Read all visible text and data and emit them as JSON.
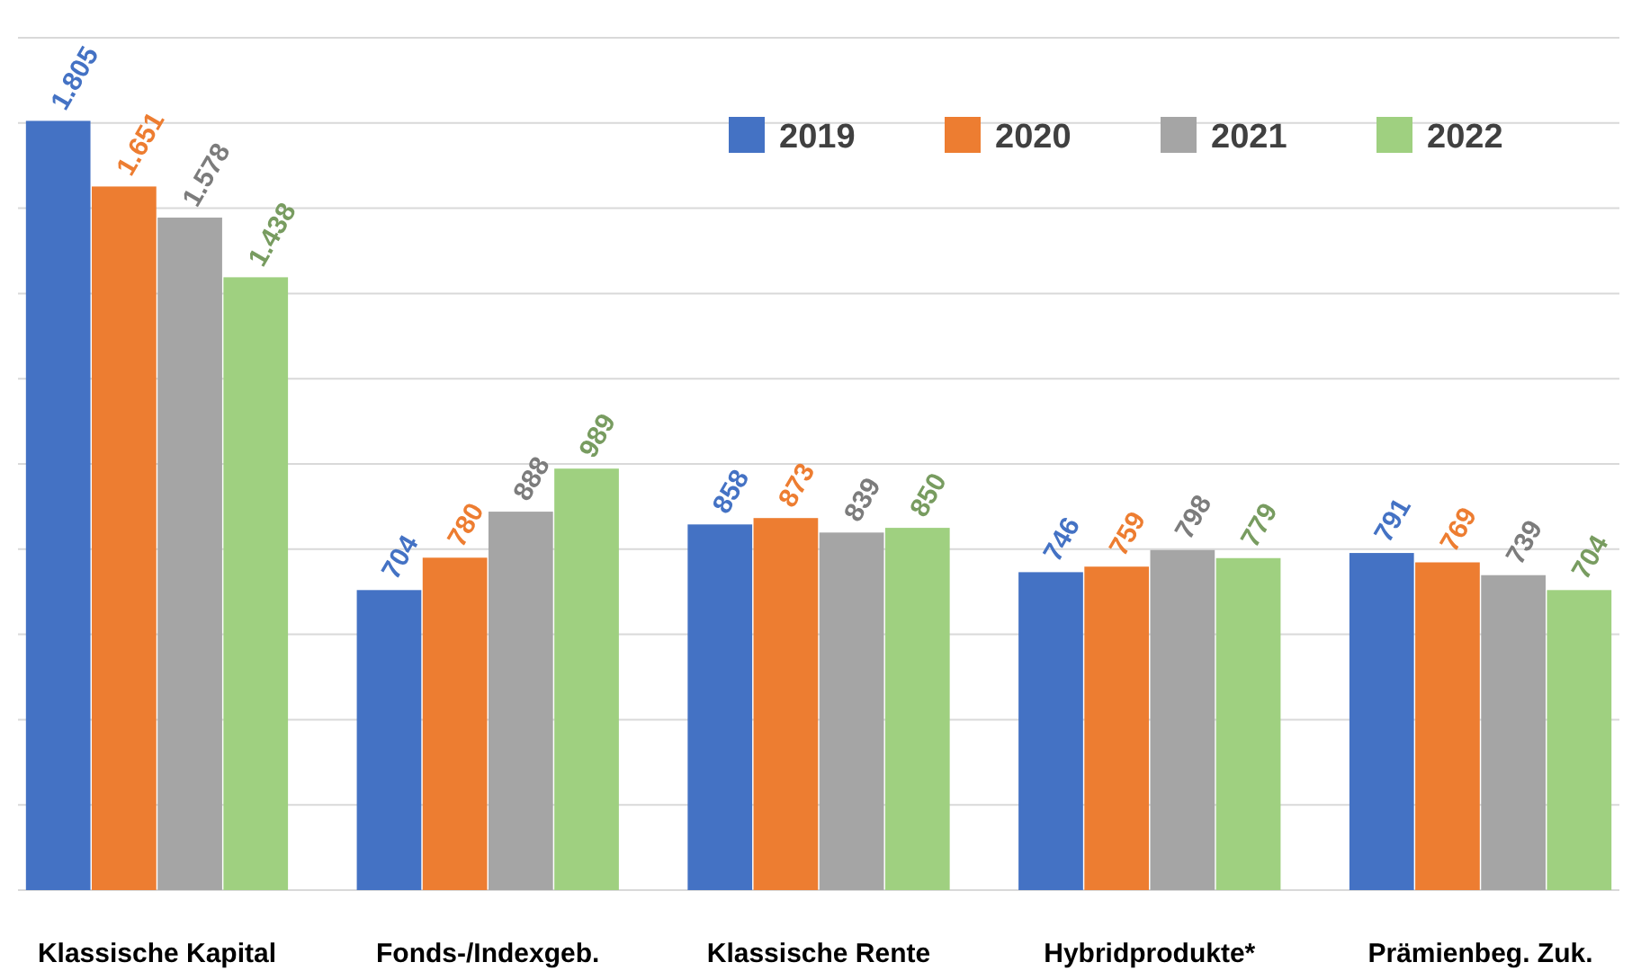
{
  "chart_data": {
    "type": "bar",
    "categories": [
      "Klassische Kapital",
      "Fonds-/Indexgeb.",
      "Klassische Rente",
      "Hybridprodukte*",
      "Prämienbeg. Zuk."
    ],
    "series": [
      {
        "name": "2019",
        "color": "#4472c4",
        "values": [
          1805,
          704,
          858,
          746,
          791
        ],
        "value_labels": [
          "1.805",
          "704",
          "858",
          "746",
          "791"
        ]
      },
      {
        "name": "2020",
        "color": "#ed7d31",
        "values": [
          1651,
          780,
          873,
          759,
          769
        ],
        "value_labels": [
          "1.651",
          "780",
          "873",
          "759",
          "769"
        ]
      },
      {
        "name": "2021",
        "color": "#a5a5a5",
        "values": [
          1578,
          888,
          839,
          798,
          739
        ],
        "value_labels": [
          "1.578",
          "888",
          "839",
          "798",
          "739"
        ]
      },
      {
        "name": "2022",
        "color": "#9fd080",
        "values": [
          1438,
          989,
          850,
          779,
          704
        ],
        "value_labels": [
          "1.438",
          "989",
          "850",
          "779",
          "704"
        ]
      }
    ],
    "ylim": [
      0,
      2000
    ],
    "yticks": [
      {
        "value": 0,
        "label": null
      },
      {
        "value": 200,
        "label": null
      },
      {
        "value": 400,
        "label": null
      },
      {
        "value": 600,
        "label": null
      },
      {
        "value": 800,
        "label": null
      },
      {
        "value": 1000,
        "label": null
      },
      {
        "value": 1200,
        "label": null
      },
      {
        "value": 1400,
        "label": null
      },
      {
        "value": 1600,
        "label": null
      },
      {
        "value": 1800,
        "label": null
      },
      {
        "value": 2000,
        "label": null
      }
    ],
    "grid": "y",
    "legend": "top right",
    "tick_labels": "x"
  }
}
